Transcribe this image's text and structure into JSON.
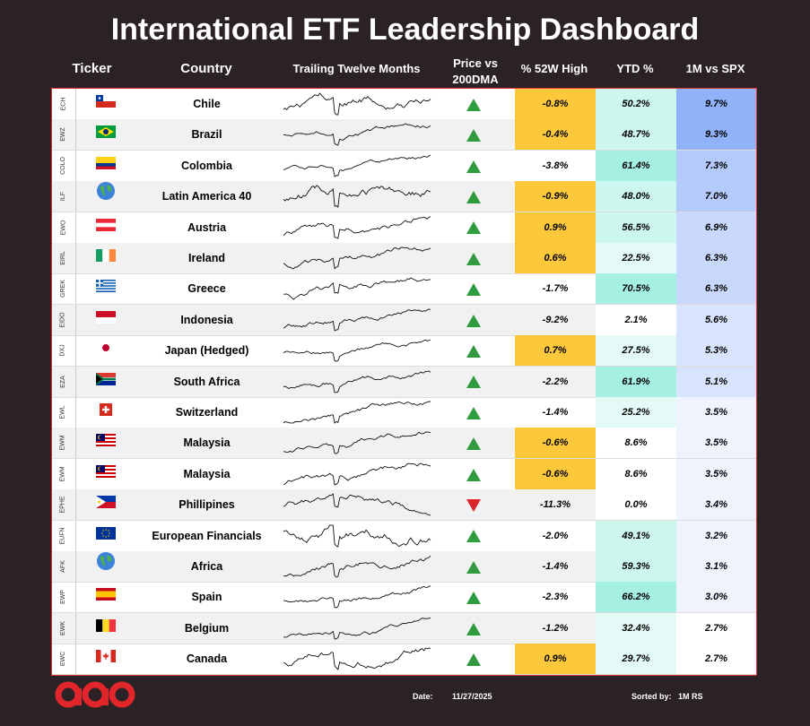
{
  "title": "International ETF Leadership Dashboard",
  "headers": {
    "ticker": "Ticker",
    "country": "Country",
    "ttm": "Trailing Twelve Months",
    "dma": "Price vs 200DMA",
    "high": "% 52W High",
    "ytd": "YTD %",
    "spx": "1M vs SPX"
  },
  "colors": {
    "up_arrow": "#2e9b3e",
    "down_arrow": "#d9262c",
    "high_highlight": "#fdc93a",
    "ytd_strong": "#a6efe3",
    "ytd_light": "#e3faf6",
    "spx_strong": "#8fb2f8",
    "spx_light": "#eef3fe",
    "frame": "#2a2224",
    "logo": "#e0262b"
  },
  "rows": [
    {
      "ticker": "ECH",
      "flag": "chile-flag",
      "country": "Chile",
      "dma": "up",
      "high": "-0.8%",
      "ytd": "50.2%",
      "spx": "9.7%"
    },
    {
      "ticker": "EWZ",
      "flag": "brazil-flag",
      "country": "Brazil",
      "dma": "up",
      "high": "-0.4%",
      "ytd": "48.7%",
      "spx": "9.3%"
    },
    {
      "ticker": "COLO",
      "flag": "colombia-flag",
      "country": "Colombia",
      "dma": "up",
      "high": "-3.8%",
      "ytd": "61.4%",
      "spx": "7.3%"
    },
    {
      "ticker": "ILF",
      "flag": "globe-americas-icon",
      "country": "Latin America 40",
      "dma": "up",
      "high": "-0.9%",
      "ytd": "48.0%",
      "spx": "7.0%"
    },
    {
      "ticker": "EWO",
      "flag": "austria-flag",
      "country": "Austria",
      "dma": "up",
      "high": "0.9%",
      "ytd": "56.5%",
      "spx": "6.9%"
    },
    {
      "ticker": "EIRL",
      "flag": "ireland-flag",
      "country": "Ireland",
      "dma": "up",
      "high": "0.6%",
      "ytd": "22.5%",
      "spx": "6.3%"
    },
    {
      "ticker": "GREK",
      "flag": "greece-flag",
      "country": "Greece",
      "dma": "up",
      "high": "-1.7%",
      "ytd": "70.5%",
      "spx": "6.3%"
    },
    {
      "ticker": "EIDO",
      "flag": "indonesia-flag",
      "country": "Indonesia",
      "dma": "up",
      "high": "-9.2%",
      "ytd": "2.1%",
      "spx": "5.6%"
    },
    {
      "ticker": "DXJ",
      "flag": "japan-flag",
      "country": "Japan (Hedged)",
      "dma": "up",
      "high": "0.7%",
      "ytd": "27.5%",
      "spx": "5.3%"
    },
    {
      "ticker": "EZA",
      "flag": "south-africa-flag",
      "country": "South Africa",
      "dma": "up",
      "high": "-2.2%",
      "ytd": "61.9%",
      "spx": "5.1%"
    },
    {
      "ticker": "EWL",
      "flag": "switzerland-flag",
      "country": "Switzerland",
      "dma": "up",
      "high": "-1.4%",
      "ytd": "25.2%",
      "spx": "3.5%"
    },
    {
      "ticker": "EWM",
      "flag": "malaysia-flag",
      "country": "Malaysia",
      "dma": "up",
      "high": "-0.6%",
      "ytd": "8.6%",
      "spx": "3.5%"
    },
    {
      "ticker": "EWM",
      "flag": "malaysia-flag",
      "country": "Malaysia",
      "dma": "up",
      "high": "-0.6%",
      "ytd": "8.6%",
      "spx": "3.5%"
    },
    {
      "ticker": "EPHE",
      "flag": "philippines-flag",
      "country": "Phillipines",
      "dma": "down",
      "high": "-11.3%",
      "ytd": "0.0%",
      "spx": "3.4%"
    },
    {
      "ticker": "EUFN",
      "flag": "eu-flag",
      "country": "European Financials",
      "dma": "up",
      "high": "-2.0%",
      "ytd": "49.1%",
      "spx": "3.2%"
    },
    {
      "ticker": "AFK",
      "flag": "globe-africa-icon",
      "country": "Africa",
      "dma": "up",
      "high": "-1.4%",
      "ytd": "59.3%",
      "spx": "3.1%"
    },
    {
      "ticker": "EWP",
      "flag": "spain-flag",
      "country": "Spain",
      "dma": "up",
      "high": "-2.3%",
      "ytd": "66.2%",
      "spx": "3.0%"
    },
    {
      "ticker": "EWK",
      "flag": "belgium-flag",
      "country": "Belgium",
      "dma": "up",
      "high": "-1.2%",
      "ytd": "32.4%",
      "spx": "2.7%"
    },
    {
      "ticker": "EWC",
      "flag": "canada-flag",
      "country": "Canada",
      "dma": "up",
      "high": "0.9%",
      "ytd": "29.7%",
      "spx": "2.7%"
    }
  ],
  "footer": {
    "date_label": "Date:",
    "date": "11/27/2025",
    "sort_label": "Sorted by:",
    "sort_value": "1M RS",
    "logo_icon": "brand-logo-icon"
  }
}
